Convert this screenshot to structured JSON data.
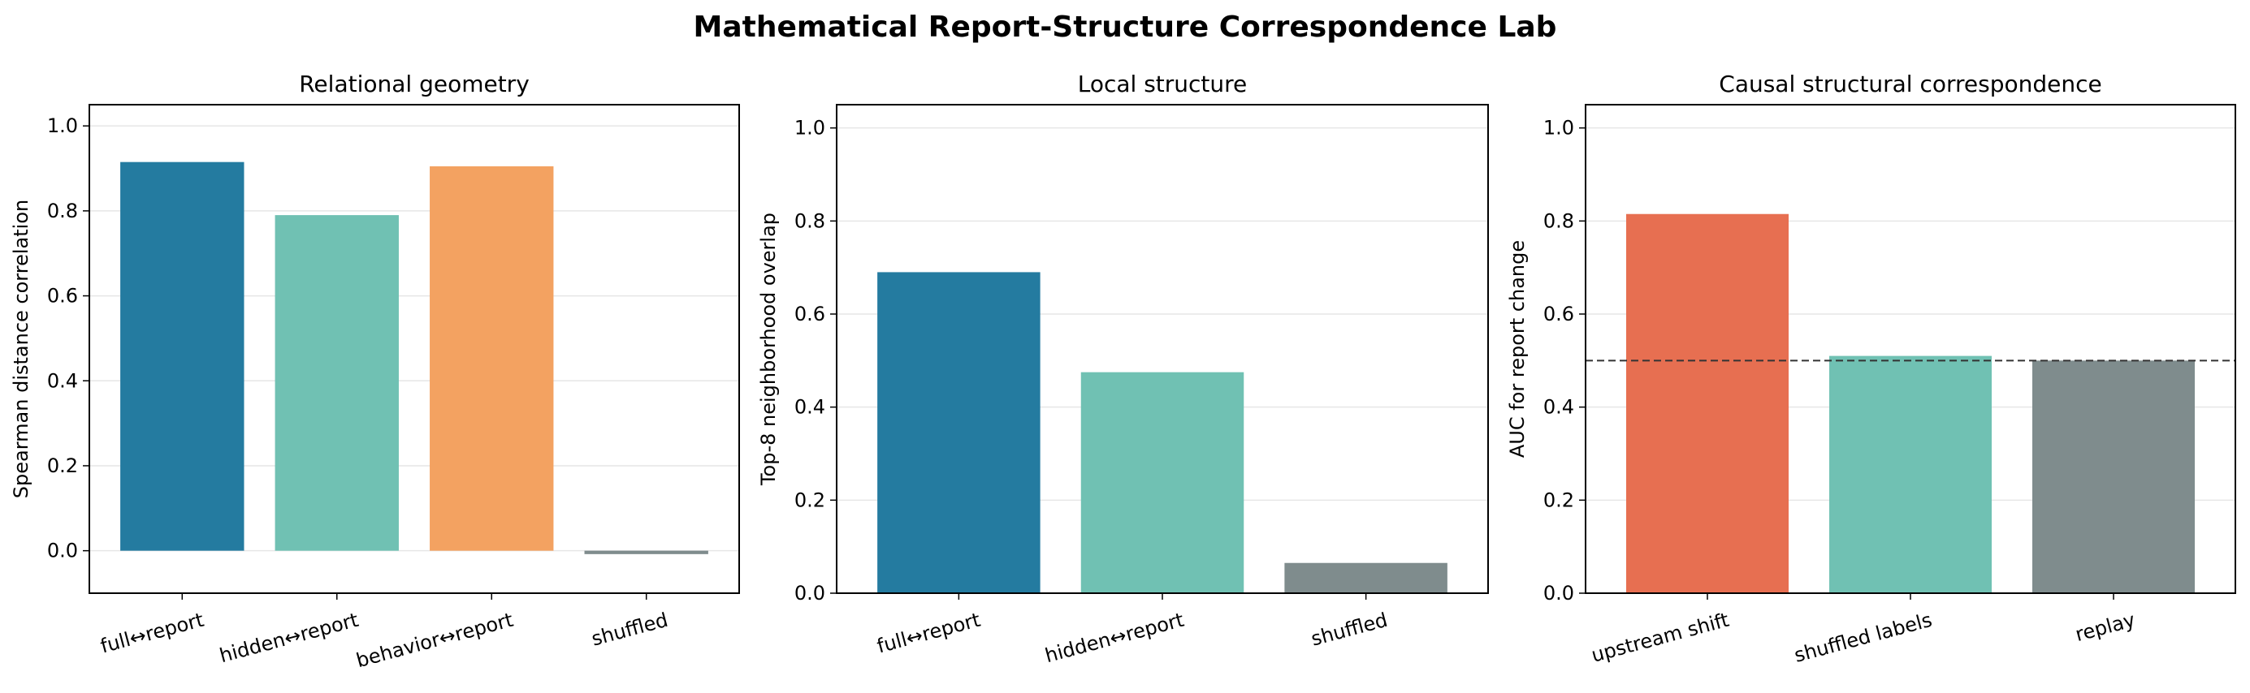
{
  "figure_title": "Mathematical Report-Structure Correspondence Lab",
  "chart_data": [
    {
      "type": "bar",
      "title": "Relational geometry",
      "xlabel": "",
      "ylabel": "Spearman distance correlation",
      "ylim": [
        -0.1,
        1.05
      ],
      "yticks": [
        0.0,
        0.2,
        0.4,
        0.6,
        0.8,
        1.0
      ],
      "ytick_labels": [
        "0.0",
        "0.2",
        "0.4",
        "0.6",
        "0.8",
        "1.0"
      ],
      "categories": [
        "full↔report",
        "hidden↔report",
        "behavior↔report",
        "shuffled"
      ],
      "values": [
        0.915,
        0.79,
        0.905,
        -0.008
      ],
      "colors": [
        "#247ba0",
        "#70c1b3",
        "#f3a261",
        "#7f8c8d"
      ],
      "grid": "y",
      "reference_line": null
    },
    {
      "type": "bar",
      "title": "Local structure",
      "xlabel": "",
      "ylabel": "Top-8 neighborhood overlap",
      "ylim": [
        0.0,
        1.05
      ],
      "yticks": [
        0.0,
        0.2,
        0.4,
        0.6,
        0.8,
        1.0
      ],
      "ytick_labels": [
        "0.0",
        "0.2",
        "0.4",
        "0.6",
        "0.8",
        "1.0"
      ],
      "categories": [
        "full↔report",
        "hidden↔report",
        "shuffled"
      ],
      "values": [
        0.69,
        0.475,
        0.065
      ],
      "colors": [
        "#247ba0",
        "#70c1b3",
        "#7f8c8d"
      ],
      "grid": "y",
      "reference_line": null
    },
    {
      "type": "bar",
      "title": "Causal structural correspondence",
      "xlabel": "",
      "ylabel": "AUC for report change",
      "ylim": [
        0.0,
        1.05
      ],
      "yticks": [
        0.0,
        0.2,
        0.4,
        0.6,
        0.8,
        1.0
      ],
      "ytick_labels": [
        "0.0",
        "0.2",
        "0.4",
        "0.6",
        "0.8",
        "1.0"
      ],
      "categories": [
        "upstream shift",
        "shuffled labels",
        "replay"
      ],
      "values": [
        0.815,
        0.51,
        0.5
      ],
      "colors": [
        "#e76f51",
        "#70c1b3",
        "#7f8c8d"
      ],
      "grid": "y",
      "reference_line": {
        "y": 0.5,
        "style": "dashed",
        "color": "#333333"
      }
    }
  ]
}
